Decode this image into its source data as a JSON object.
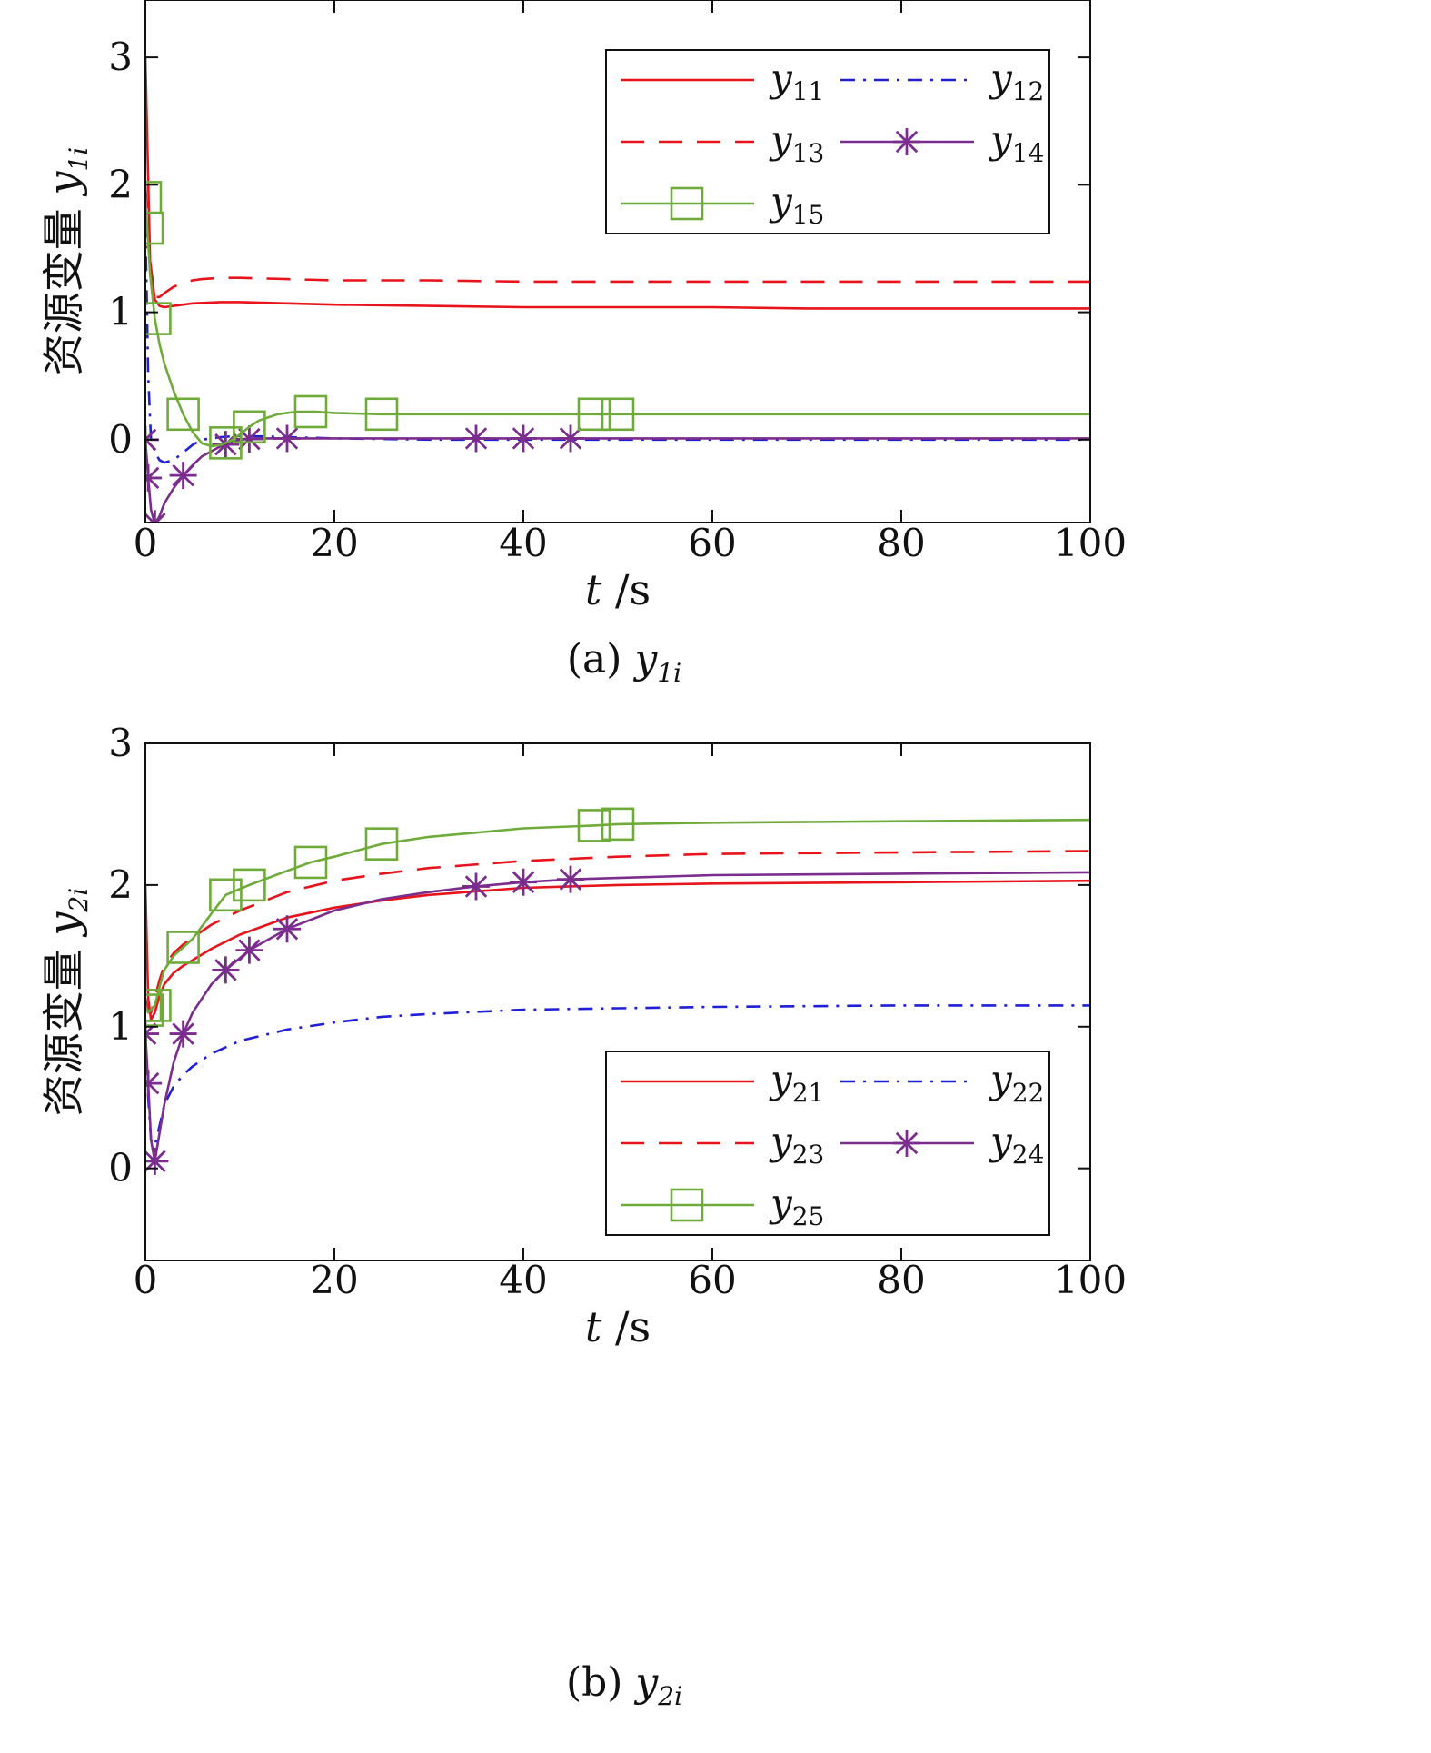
{
  "chart_data": [
    {
      "type": "line",
      "caption_prefix": "(a)",
      "caption_symbol": "y",
      "caption_sub": "1i",
      "xlabel_symbol": "t",
      "xlabel_unit": "/s",
      "ylabel_text": "资源变量",
      "ylabel_symbol": "y",
      "ylabel_sub": "1i",
      "xlim": [
        0,
        100
      ],
      "ylim": [
        -0.65,
        3.45
      ],
      "xticks": [
        0,
        20,
        40,
        60,
        80,
        100
      ],
      "yticks": [
        0,
        1,
        2,
        3
      ],
      "legend_position": "top-right",
      "grid": false,
      "series": [
        {
          "name": "y11",
          "label_base": "y",
          "label_sub": "11",
          "color": "#e8141c",
          "dash": "solid",
          "marker": "none",
          "x": [
            0,
            0.5,
            1,
            1.5,
            2,
            3,
            5,
            8,
            10,
            15,
            20,
            30,
            40,
            50,
            60,
            70,
            80,
            90,
            100
          ],
          "y": [
            3.0,
            1.4,
            1.1,
            1.05,
            1.04,
            1.05,
            1.07,
            1.08,
            1.08,
            1.07,
            1.06,
            1.05,
            1.04,
            1.04,
            1.04,
            1.03,
            1.03,
            1.03,
            1.03
          ]
        },
        {
          "name": "y12",
          "label_base": "y",
          "label_sub": "12",
          "color": "#1f1fd6",
          "dash": "dashdot",
          "marker": "none",
          "x": [
            0,
            0.3,
            0.6,
            1,
            1.5,
            2,
            3,
            4,
            5,
            6,
            8,
            10,
            15,
            20,
            30,
            40,
            60,
            80,
            100
          ],
          "y": [
            1.7,
            0.5,
            0.0,
            -0.1,
            -0.16,
            -0.18,
            -0.16,
            -0.1,
            -0.04,
            0.0,
            0.02,
            0.03,
            0.02,
            0.01,
            0.0,
            0.0,
            0.0,
            0.0,
            0.0
          ]
        },
        {
          "name": "y13",
          "label_base": "y",
          "label_sub": "13",
          "color": "#e8141c",
          "dash": "dashed",
          "marker": "none",
          "x": [
            0,
            0.5,
            1,
            1.5,
            2,
            3,
            4,
            5,
            6,
            8,
            10,
            15,
            20,
            30,
            40,
            60,
            80,
            100
          ],
          "y": [
            2.0,
            1.4,
            1.12,
            1.12,
            1.15,
            1.2,
            1.23,
            1.25,
            1.26,
            1.27,
            1.27,
            1.26,
            1.25,
            1.25,
            1.24,
            1.24,
            1.24,
            1.24
          ]
        },
        {
          "name": "y14",
          "label_base": "y",
          "label_sub": "14",
          "color": "#7b2d8e",
          "dash": "solid",
          "marker": "star",
          "x": [
            0,
            0.3,
            0.6,
            1,
            1.5,
            2,
            3,
            4,
            5,
            6,
            8,
            10,
            12,
            15,
            20,
            30,
            40,
            50,
            60,
            80,
            100
          ],
          "y": [
            0.0,
            -0.3,
            -0.55,
            -0.66,
            -0.6,
            -0.5,
            -0.38,
            -0.28,
            -0.2,
            -0.13,
            -0.05,
            0.0,
            0.01,
            0.01,
            0.01,
            0.01,
            0.01,
            0.01,
            0.01,
            0.01,
            0.01
          ],
          "marker_x": [
            0,
            0.3,
            1,
            4,
            8.5,
            11,
            15,
            35,
            40,
            45
          ]
        },
        {
          "name": "y15",
          "label_base": "y",
          "label_sub": "15",
          "color": "#6fab3a",
          "dash": "solid",
          "marker": "square",
          "x": [
            0,
            0.5,
            1,
            1.5,
            2,
            3,
            4,
            5,
            6,
            7,
            8,
            9,
            10,
            11,
            12,
            14,
            16,
            18,
            20,
            25,
            30,
            40,
            50,
            60,
            80,
            100
          ],
          "y": [
            1.9,
            1.3,
            0.95,
            0.75,
            0.6,
            0.38,
            0.2,
            0.06,
            -0.03,
            -0.05,
            -0.04,
            -0.01,
            0.04,
            0.1,
            0.15,
            0.2,
            0.22,
            0.22,
            0.21,
            0.2,
            0.2,
            0.2,
            0.2,
            0.2,
            0.2,
            0.2
          ],
          "marker_x": [
            0,
            0.2,
            1,
            4,
            8.5,
            11,
            17.5,
            25,
            47.5,
            50
          ]
        }
      ]
    },
    {
      "type": "line",
      "caption_prefix": "(b)",
      "caption_symbol": "y",
      "caption_sub": "2i",
      "xlabel_symbol": "t",
      "xlabel_unit": "/s",
      "ylabel_text": "资源变量",
      "ylabel_symbol": "y",
      "ylabel_sub": "2i",
      "xlim": [
        0,
        100
      ],
      "ylim": [
        -0.65,
        3.0
      ],
      "xticks": [
        0,
        20,
        40,
        60,
        80,
        100
      ],
      "yticks": [
        0,
        1,
        2,
        3
      ],
      "legend_position": "bottom-right",
      "grid": false,
      "series": [
        {
          "name": "y21",
          "label_base": "y",
          "label_sub": "21",
          "color": "#e8141c",
          "dash": "solid",
          "marker": "none",
          "x": [
            0,
            0.3,
            0.6,
            1,
            1.5,
            2,
            3,
            4,
            5,
            7,
            10,
            15,
            20,
            25,
            30,
            40,
            50,
            60,
            80,
            100
          ],
          "y": [
            2.0,
            1.2,
            1.05,
            1.1,
            1.22,
            1.3,
            1.38,
            1.43,
            1.47,
            1.55,
            1.65,
            1.77,
            1.84,
            1.89,
            1.93,
            1.98,
            2.0,
            2.01,
            2.02,
            2.03
          ]
        },
        {
          "name": "y22",
          "label_base": "y",
          "label_sub": "22",
          "color": "#1f1fd6",
          "dash": "dashdot",
          "marker": "none",
          "x": [
            0,
            0.3,
            0.6,
            1,
            1.5,
            2,
            3,
            4,
            5,
            7,
            10,
            15,
            20,
            25,
            30,
            40,
            50,
            60,
            80,
            100
          ],
          "y": [
            1.0,
            0.5,
            0.2,
            0.16,
            0.3,
            0.45,
            0.58,
            0.66,
            0.72,
            0.81,
            0.9,
            0.98,
            1.03,
            1.07,
            1.09,
            1.12,
            1.13,
            1.14,
            1.15,
            1.15
          ]
        },
        {
          "name": "y23",
          "label_base": "y",
          "label_sub": "23",
          "color": "#e8141c",
          "dash": "dashed",
          "marker": "none",
          "x": [
            0,
            0.3,
            0.6,
            1,
            1.5,
            2,
            3,
            4,
            5,
            7,
            10,
            15,
            20,
            25,
            30,
            40,
            50,
            60,
            80,
            100
          ],
          "y": [
            1.2,
            1.1,
            1.1,
            1.2,
            1.33,
            1.43,
            1.52,
            1.58,
            1.63,
            1.72,
            1.82,
            1.95,
            2.03,
            2.08,
            2.12,
            2.17,
            2.2,
            2.22,
            2.23,
            2.24
          ]
        },
        {
          "name": "y24",
          "label_base": "y",
          "label_sub": "24",
          "color": "#7b2d8e",
          "dash": "solid",
          "marker": "star",
          "x": [
            0,
            0.3,
            0.6,
            1,
            1.5,
            2,
            3,
            4,
            5,
            7,
            8.5,
            11,
            15,
            20,
            25,
            30,
            35,
            40,
            45,
            50,
            60,
            80,
            100
          ],
          "y": [
            0.95,
            0.6,
            0.2,
            0.05,
            0.25,
            0.45,
            0.75,
            0.95,
            1.1,
            1.3,
            1.4,
            1.54,
            1.69,
            1.82,
            1.9,
            1.95,
            1.99,
            2.02,
            2.04,
            2.05,
            2.07,
            2.08,
            2.09
          ],
          "marker_x": [
            0,
            0.3,
            1,
            4,
            8.5,
            11,
            15,
            35,
            40,
            45
          ]
        },
        {
          "name": "y25",
          "label_base": "y",
          "label_sub": "25",
          "color": "#6fab3a",
          "dash": "solid",
          "marker": "square",
          "x": [
            0,
            0.3,
            0.6,
            1,
            1.5,
            2,
            3,
            4,
            5,
            7,
            8.5,
            11,
            15,
            17.5,
            20,
            25,
            30,
            40,
            47.5,
            50,
            60,
            80,
            100
          ],
          "y": [
            1.15,
            1.1,
            1.12,
            1.15,
            1.28,
            1.4,
            1.5,
            1.56,
            1.62,
            1.8,
            1.93,
            2.0,
            2.1,
            2.16,
            2.2,
            2.29,
            2.34,
            2.4,
            2.42,
            2.43,
            2.44,
            2.45,
            2.46
          ],
          "marker_x": [
            0,
            0.2,
            1,
            4,
            8.5,
            11,
            17.5,
            25,
            47.5,
            50
          ]
        }
      ]
    }
  ]
}
